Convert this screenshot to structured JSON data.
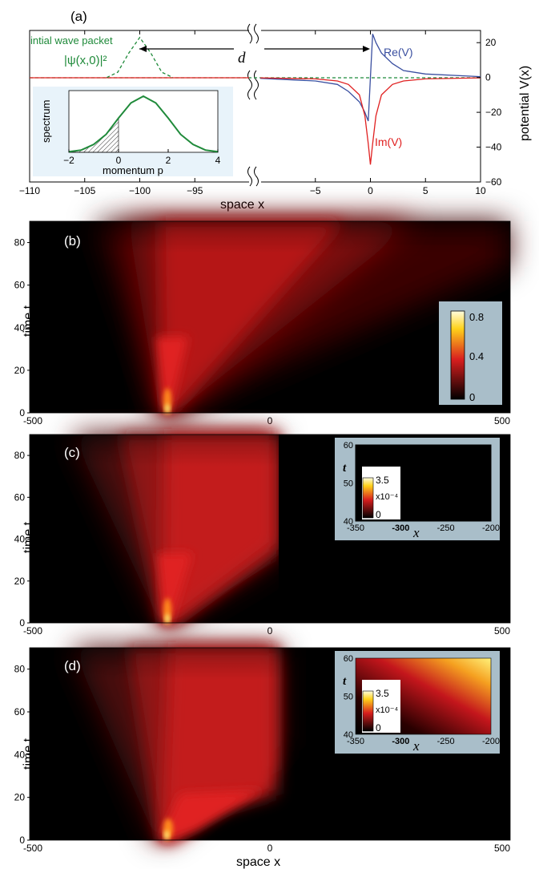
{
  "chart_data": [
    {
      "panel": "(a)",
      "type": "line",
      "xlabel": "space x",
      "ylabel": "potential V(x)",
      "left_axis": {
        "xlim": [
          -110,
          -90
        ],
        "ticks": [
          -110,
          -105,
          -100,
          -95
        ]
      },
      "right_axis": {
        "xlim": [
          -10,
          10
        ],
        "ticks": [
          -5,
          0,
          5,
          10
        ]
      },
      "yticks": [
        20,
        0,
        -20,
        -40,
        -60
      ],
      "ylim": [
        -60,
        27
      ],
      "labels": {
        "wave": "intial wave packet",
        "psi": "|ψ(x,0)|²",
        "distance": "d",
        "re": "Re(V)",
        "im": "Im(V)"
      },
      "colors": {
        "re": "#3a4fa0",
        "im": "#e02020",
        "packet": "#1f8a3a"
      },
      "series": [
        {
          "name": "Re(V)",
          "x": [
            -10,
            -5,
            -3,
            -2,
            -1,
            -0.5,
            -0.2,
            0,
            0.2,
            0.5,
            1,
            2,
            3,
            5,
            10
          ],
          "y": [
            -0.5,
            -2,
            -4,
            -8,
            -14,
            -20,
            -25,
            0,
            25,
            20,
            14,
            8,
            4,
            2,
            0.5
          ]
        },
        {
          "name": "Im(V)",
          "x": [
            -10,
            -5,
            -3,
            -2,
            -1,
            -0.5,
            -0.2,
            0,
            0.2,
            0.5,
            1,
            2,
            3,
            5,
            10
          ],
          "y": [
            -0.2,
            -0.8,
            -2,
            -4,
            -10,
            -22,
            -38,
            -50,
            -38,
            -22,
            -10,
            -4,
            -2,
            -0.8,
            -0.2
          ]
        },
        {
          "name": "|ψ(x,0)|²",
          "x": [
            -103,
            -102,
            -101,
            -100,
            -99,
            -98,
            -97
          ],
          "y": [
            0,
            3,
            14,
            23,
            14,
            3,
            0
          ]
        }
      ],
      "inset": {
        "xlabel": "momentum p",
        "ylabel": "spectrum",
        "xticks": [
          -2,
          0,
          2,
          4
        ],
        "xlim": [
          -2,
          4
        ],
        "p": [
          -2,
          -1.5,
          -1,
          -0.5,
          0,
          0.5,
          1,
          1.5,
          2,
          2.5,
          3,
          3.5,
          4
        ],
        "amp": [
          0.01,
          0.04,
          0.14,
          0.32,
          0.61,
          0.88,
          1.0,
          0.88,
          0.61,
          0.32,
          0.14,
          0.04,
          0.01
        ]
      }
    },
    {
      "panel": "(b)",
      "type": "heatmap",
      "ylabel": "time t",
      "xlim": [
        -500,
        500
      ],
      "xticks": [
        "-500",
        "0",
        "500"
      ],
      "yticks": [
        0,
        20,
        40,
        60,
        80
      ],
      "ylim": [
        0,
        90
      ],
      "colorbar_ticks": [
        "0.8",
        "0.4",
        "0"
      ]
    },
    {
      "panel": "(c)",
      "type": "heatmap",
      "ylabel": "time t",
      "xlim": [
        -500,
        500
      ],
      "xticks": [
        "-500",
        "0",
        "500"
      ],
      "yticks": [
        0,
        20,
        40,
        60,
        80
      ],
      "ylim": [
        0,
        90
      ],
      "inset": {
        "xlabel": "x",
        "ylabel": "t",
        "xticks": [
          "-350",
          "-300",
          "-250",
          "-200"
        ],
        "yticks": [
          "60",
          "50",
          "40"
        ],
        "colorbar": [
          "3.5",
          "x10⁻⁴",
          "0"
        ]
      }
    },
    {
      "panel": "(d)",
      "type": "heatmap",
      "ylabel": "time t",
      "xlabel": "space x",
      "xlim": [
        -500,
        500
      ],
      "xticks": [
        "-500",
        "0",
        "500"
      ],
      "yticks": [
        0,
        20,
        40,
        60,
        80
      ],
      "ylim": [
        0,
        90
      ],
      "inset": {
        "xlabel": "x",
        "ylabel": "t",
        "xticks": [
          "-350",
          "-300",
          "-250",
          "-200"
        ],
        "yticks": [
          "60",
          "50",
          "40"
        ],
        "colorbar": [
          "3.5",
          "x10⁻⁴",
          "0"
        ]
      }
    }
  ]
}
